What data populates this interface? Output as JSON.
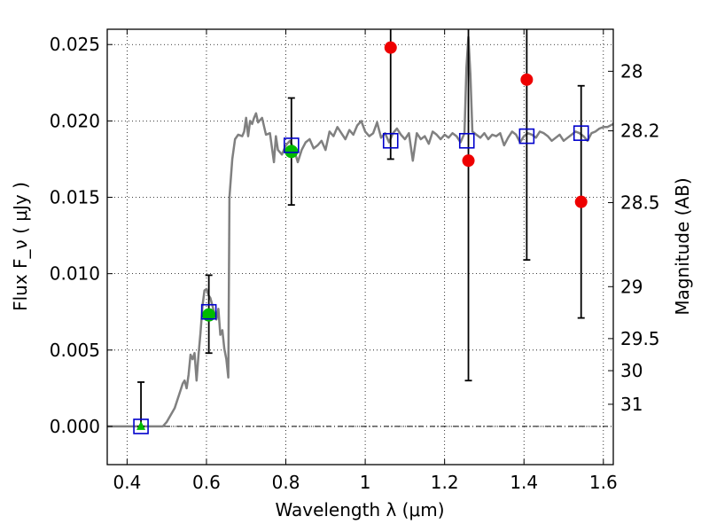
{
  "chart_data": {
    "type": "scatter",
    "xlabel": "Wavelength  λ (μm)",
    "ylabel_left": "Flux  F_ν  ( μJy )",
    "ylabel_right": "Magnitude (AB)",
    "xlim": [
      0.35,
      1.625
    ],
    "ylim": [
      -0.0025,
      0.026
    ],
    "grid": true,
    "x_ticks": [
      {
        "value": 0.4,
        "label": "0.4"
      },
      {
        "value": 0.6,
        "label": "0.6"
      },
      {
        "value": 0.8,
        "label": "0.8"
      },
      {
        "value": 1.0,
        "label": "1"
      },
      {
        "value": 1.2,
        "label": "1.2"
      },
      {
        "value": 1.4,
        "label": "1.4"
      },
      {
        "value": 1.6,
        "label": "1.6"
      }
    ],
    "y_ticks": [
      {
        "value": 0.0,
        "label": "0.000"
      },
      {
        "value": 0.005,
        "label": "0.005"
      },
      {
        "value": 0.01,
        "label": "0.010"
      },
      {
        "value": 0.015,
        "label": "0.015"
      },
      {
        "value": 0.02,
        "label": "0.020"
      },
      {
        "value": 0.025,
        "label": "0.025"
      }
    ],
    "right_ticks": [
      {
        "flux": 0.02325,
        "label": "28"
      },
      {
        "flux": 0.01935,
        "label": "28.2"
      },
      {
        "flux": 0.01465,
        "label": "28.5"
      },
      {
        "flux": 0.00915,
        "label": "29"
      },
      {
        "flux": 0.00575,
        "label": "29.5"
      },
      {
        "flux": 0.00365,
        "label": "30"
      },
      {
        "flux": 0.00145,
        "label": "31"
      }
    ],
    "colors": {
      "template": "#808080",
      "model": "#0000cc",
      "detected": "#00bb00",
      "upper": "#ee0000",
      "errorbar": "#000000"
    },
    "template_spectrum": [
      [
        0.35,
        0
      ],
      [
        0.49,
        0
      ],
      [
        0.5,
        0.0003
      ],
      [
        0.52,
        0.0012
      ],
      [
        0.535,
        0.0024
      ],
      [
        0.54,
        0.0028
      ],
      [
        0.545,
        0.003
      ],
      [
        0.55,
        0.0025
      ],
      [
        0.555,
        0.0034
      ],
      [
        0.56,
        0.0047
      ],
      [
        0.565,
        0.0044
      ],
      [
        0.57,
        0.0048
      ],
      [
        0.575,
        0.003
      ],
      [
        0.58,
        0.0047
      ],
      [
        0.585,
        0.0061
      ],
      [
        0.59,
        0.0079
      ],
      [
        0.595,
        0.0089
      ],
      [
        0.6,
        0.009
      ],
      [
        0.605,
        0.0086
      ],
      [
        0.61,
        0.0084
      ],
      [
        0.615,
        0.0079
      ],
      [
        0.62,
        0.0074
      ],
      [
        0.625,
        0.007
      ],
      [
        0.63,
        0.0077
      ],
      [
        0.635,
        0.006
      ],
      [
        0.64,
        0.0063
      ],
      [
        0.645,
        0.0051
      ],
      [
        0.65,
        0.0044
      ],
      [
        0.655,
        0.0032
      ],
      [
        0.658,
        0.015
      ],
      [
        0.665,
        0.0175
      ],
      [
        0.672,
        0.0188
      ],
      [
        0.68,
        0.0191
      ],
      [
        0.69,
        0.019
      ],
      [
        0.695,
        0.0193
      ],
      [
        0.7,
        0.0202
      ],
      [
        0.705,
        0.019
      ],
      [
        0.71,
        0.02
      ],
      [
        0.715,
        0.0198
      ],
      [
        0.72,
        0.0202
      ],
      [
        0.725,
        0.0205
      ],
      [
        0.73,
        0.0199
      ],
      [
        0.74,
        0.0202
      ],
      [
        0.75,
        0.0191
      ],
      [
        0.76,
        0.0192
      ],
      [
        0.77,
        0.0173
      ],
      [
        0.775,
        0.019
      ],
      [
        0.78,
        0.0181
      ],
      [
        0.79,
        0.0178
      ],
      [
        0.8,
        0.0184
      ],
      [
        0.81,
        0.0187
      ],
      [
        0.82,
        0.0182
      ],
      [
        0.83,
        0.0173
      ],
      [
        0.84,
        0.0181
      ],
      [
        0.85,
        0.0186
      ],
      [
        0.86,
        0.0188
      ],
      [
        0.87,
        0.0182
      ],
      [
        0.88,
        0.0184
      ],
      [
        0.89,
        0.0187
      ],
      [
        0.9,
        0.0181
      ],
      [
        0.91,
        0.0193
      ],
      [
        0.92,
        0.019
      ],
      [
        0.93,
        0.0196
      ],
      [
        0.94,
        0.0192
      ],
      [
        0.95,
        0.0188
      ],
      [
        0.96,
        0.0194
      ],
      [
        0.97,
        0.0191
      ],
      [
        0.98,
        0.0197
      ],
      [
        0.99,
        0.02
      ],
      [
        1.0,
        0.0193
      ],
      [
        1.01,
        0.019
      ],
      [
        1.02,
        0.0192
      ],
      [
        1.03,
        0.0199
      ],
      [
        1.04,
        0.0189
      ],
      [
        1.05,
        0.0192
      ],
      [
        1.06,
        0.0186
      ],
      [
        1.07,
        0.0192
      ],
      [
        1.08,
        0.0195
      ],
      [
        1.09,
        0.0191
      ],
      [
        1.1,
        0.0188
      ],
      [
        1.11,
        0.0192
      ],
      [
        1.12,
        0.0174
      ],
      [
        1.13,
        0.0192
      ],
      [
        1.14,
        0.0188
      ],
      [
        1.15,
        0.019
      ],
      [
        1.16,
        0.0185
      ],
      [
        1.17,
        0.0193
      ],
      [
        1.18,
        0.0191
      ],
      [
        1.19,
        0.0188
      ],
      [
        1.2,
        0.0191
      ],
      [
        1.21,
        0.0189
      ],
      [
        1.22,
        0.0192
      ],
      [
        1.23,
        0.019
      ],
      [
        1.24,
        0.0186
      ],
      [
        1.25,
        0.0192
      ],
      [
        1.255,
        0.0235
      ],
      [
        1.26,
        0.0255
      ],
      [
        1.265,
        0.023
      ],
      [
        1.27,
        0.0193
      ],
      [
        1.28,
        0.0191
      ],
      [
        1.29,
        0.0189
      ],
      [
        1.3,
        0.0192
      ],
      [
        1.31,
        0.0188
      ],
      [
        1.32,
        0.0191
      ],
      [
        1.33,
        0.019
      ],
      [
        1.34,
        0.0192
      ],
      [
        1.35,
        0.0184
      ],
      [
        1.36,
        0.0189
      ],
      [
        1.37,
        0.0193
      ],
      [
        1.38,
        0.0191
      ],
      [
        1.39,
        0.0186
      ],
      [
        1.4,
        0.019
      ],
      [
        1.41,
        0.0192
      ],
      [
        1.42,
        0.0191
      ],
      [
        1.43,
        0.0189
      ],
      [
        1.44,
        0.0193
      ],
      [
        1.45,
        0.0192
      ],
      [
        1.46,
        0.019
      ],
      [
        1.47,
        0.0187
      ],
      [
        1.48,
        0.0189
      ],
      [
        1.49,
        0.0191
      ],
      [
        1.5,
        0.0187
      ],
      [
        1.51,
        0.0189
      ],
      [
        1.52,
        0.0191
      ],
      [
        1.53,
        0.0193
      ],
      [
        1.54,
        0.0192
      ],
      [
        1.55,
        0.019
      ],
      [
        1.56,
        0.0187
      ],
      [
        1.57,
        0.0192
      ],
      [
        1.58,
        0.0193
      ],
      [
        1.59,
        0.0195
      ],
      [
        1.6,
        0.0196
      ],
      [
        1.61,
        0.0196
      ],
      [
        1.625,
        0.0198
      ]
    ],
    "model_points": [
      {
        "x": 0.435,
        "y": 0.0
      },
      {
        "x": 0.606,
        "y": 0.0075
      },
      {
        "x": 0.814,
        "y": 0.0184
      },
      {
        "x": 1.064,
        "y": 0.0187
      },
      {
        "x": 1.256,
        "y": 0.0187
      },
      {
        "x": 1.407,
        "y": 0.019
      },
      {
        "x": 1.544,
        "y": 0.0192
      }
    ],
    "detections": [
      {
        "x": 0.606,
        "y": 0.0073,
        "yerr_low": 0.0048,
        "yerr_high": 0.0099
      },
      {
        "x": 0.814,
        "y": 0.018,
        "yerr_low": 0.0145,
        "yerr_high": 0.0215
      }
    ],
    "low_significance": [
      {
        "x": 0.435,
        "y": 0.0,
        "yerr_low": 0.0,
        "yerr_high": 0.0029
      }
    ],
    "upper_points": [
      {
        "x": 1.064,
        "y": 0.0248,
        "yerr_low": 0.0175,
        "yerr_high": 0.026
      },
      {
        "x": 1.26,
        "y": 0.0174,
        "yerr_low": 0.003,
        "yerr_high": 0.026
      },
      {
        "x": 1.407,
        "y": 0.0227,
        "yerr_low": 0.0109,
        "yerr_high": 0.026
      },
      {
        "x": 1.544,
        "y": 0.0147,
        "yerr_low": 0.0071,
        "yerr_high": 0.0223
      }
    ]
  }
}
